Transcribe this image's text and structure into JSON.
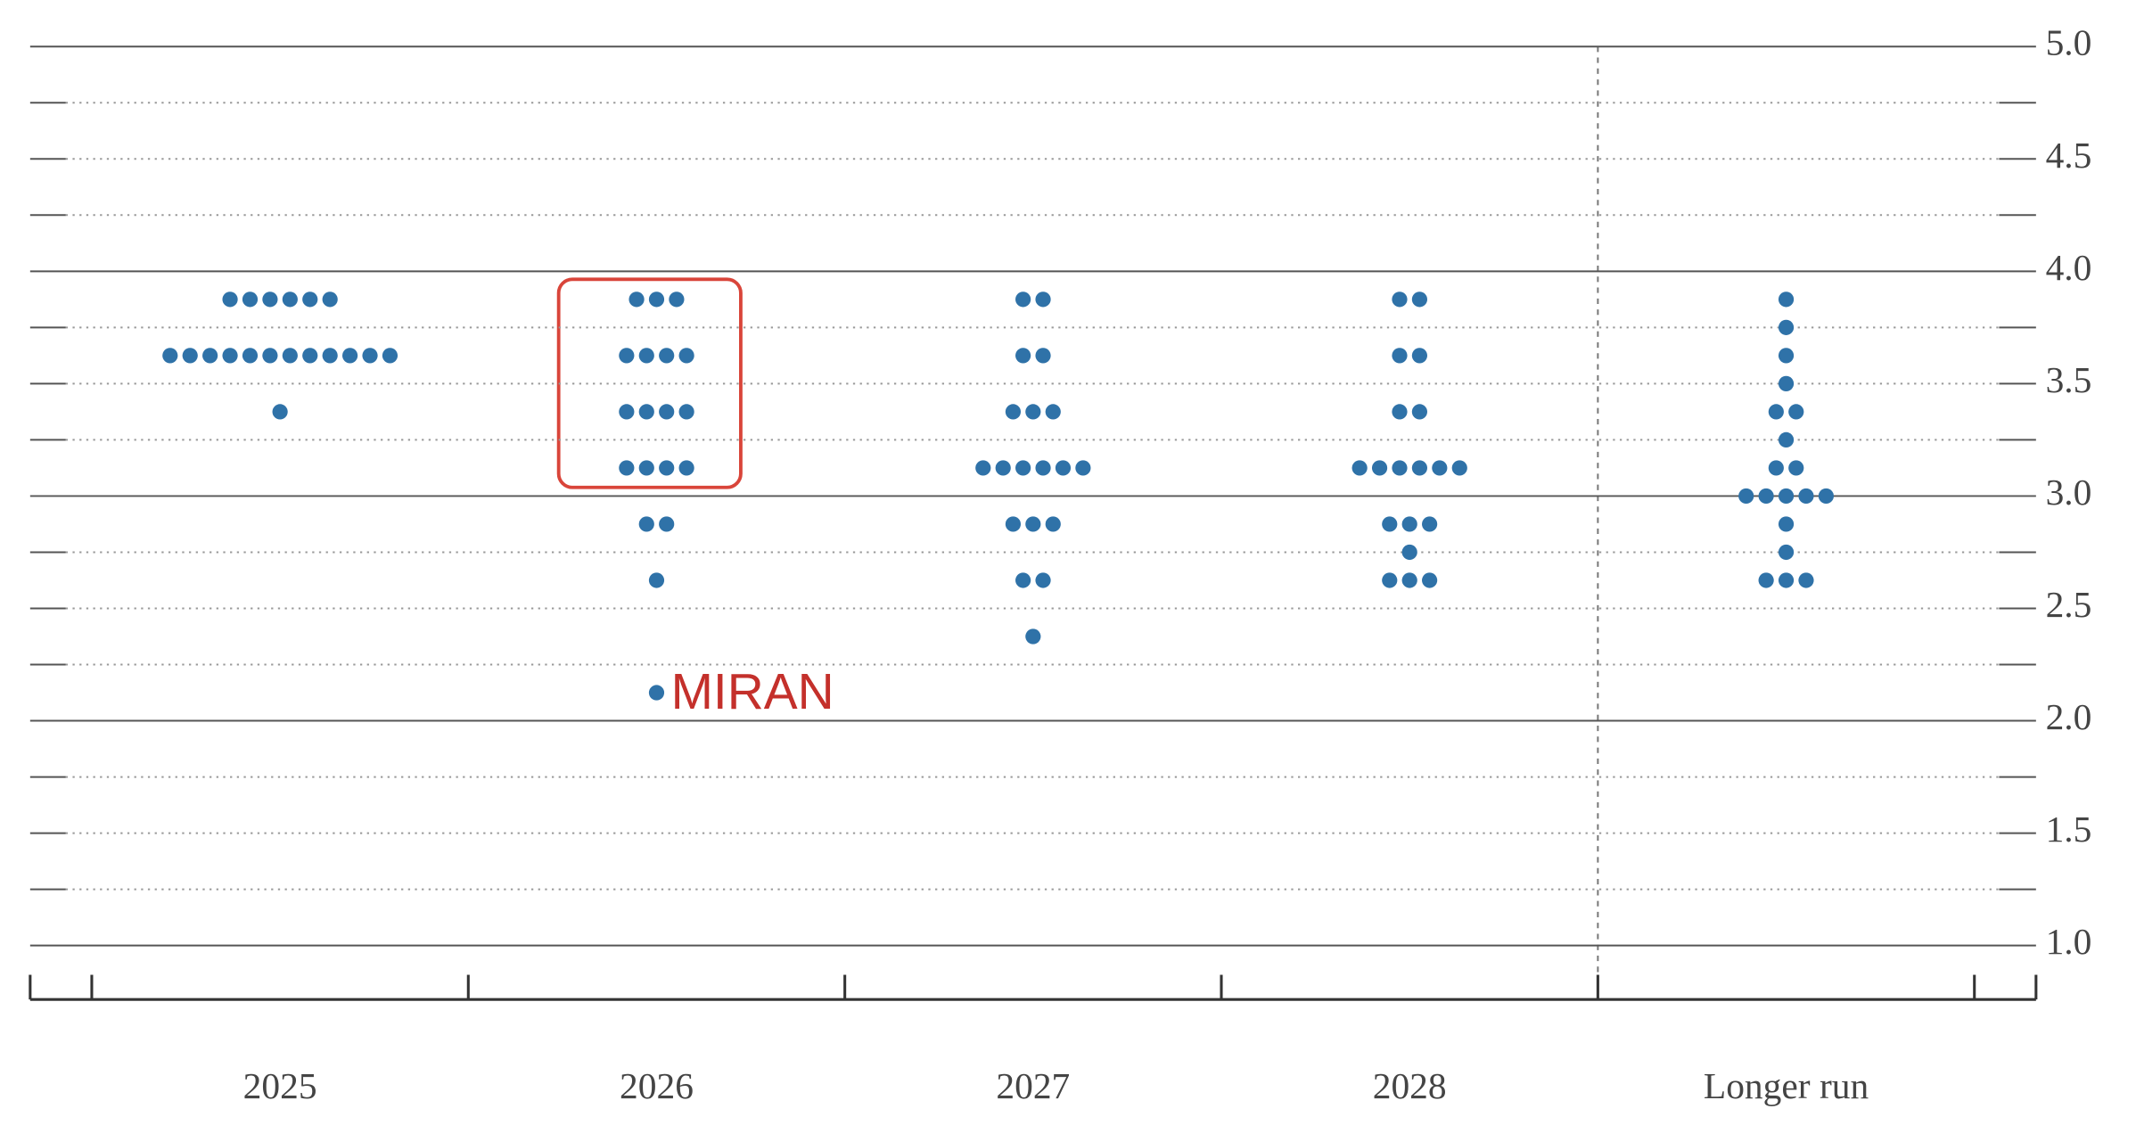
{
  "chart_data": {
    "type": "dot",
    "categories": [
      "2025",
      "2026",
      "2027",
      "2028",
      "Longer run"
    ],
    "color": "#2f72a8",
    "dots": [
      [
        {
          "value": 3.875,
          "count": 6
        },
        {
          "value": 3.625,
          "count": 12
        },
        {
          "value": 3.375,
          "count": 1
        }
      ],
      [
        {
          "value": 3.875,
          "count": 3
        },
        {
          "value": 3.625,
          "count": 4
        },
        {
          "value": 3.375,
          "count": 4
        },
        {
          "value": 3.125,
          "count": 4
        },
        {
          "value": 2.875,
          "count": 2
        },
        {
          "value": 2.625,
          "count": 1
        },
        {
          "value": 2.125,
          "count": 1
        }
      ],
      [
        {
          "value": 3.875,
          "count": 2
        },
        {
          "value": 3.625,
          "count": 2
        },
        {
          "value": 3.375,
          "count": 3
        },
        {
          "value": 3.125,
          "count": 6
        },
        {
          "value": 2.875,
          "count": 3
        },
        {
          "value": 2.625,
          "count": 2
        },
        {
          "value": 2.375,
          "count": 1
        }
      ],
      [
        {
          "value": 3.875,
          "count": 2
        },
        {
          "value": 3.625,
          "count": 2
        },
        {
          "value": 3.375,
          "count": 2
        },
        {
          "value": 3.125,
          "count": 6
        },
        {
          "value": 2.875,
          "count": 3
        },
        {
          "value": 2.75,
          "count": 1
        },
        {
          "value": 2.625,
          "count": 3
        }
      ],
      [
        {
          "value": 3.875,
          "count": 1
        },
        {
          "value": 3.75,
          "count": 1
        },
        {
          "value": 3.625,
          "count": 1
        },
        {
          "value": 3.5,
          "count": 1
        },
        {
          "value": 3.375,
          "count": 2
        },
        {
          "value": 3.25,
          "count": 1
        },
        {
          "value": 3.125,
          "count": 2
        },
        {
          "value": 3.0,
          "count": 5
        },
        {
          "value": 2.875,
          "count": 1
        },
        {
          "value": 2.75,
          "count": 1
        },
        {
          "value": 2.625,
          "count": 3
        }
      ]
    ],
    "annotation": "MIRAN",
    "ylim": [
      0.76,
      5.0
    ],
    "yticks": [
      {
        "value": 1.0,
        "label": "1.0"
      },
      {
        "value": 1.5,
        "label": "1.5"
      },
      {
        "value": 2.0,
        "label": "2.0"
      },
      {
        "value": 2.5,
        "label": "2.5"
      },
      {
        "value": 3.0,
        "label": "3.0"
      },
      {
        "value": 3.5,
        "label": "3.5"
      },
      {
        "value": 4.0,
        "label": "4.0"
      },
      {
        "value": 4.5,
        "label": "4.5"
      },
      {
        "value": 5.0,
        "label": "5.0"
      }
    ],
    "minor_yticks": [
      1.25,
      1.75,
      2.25,
      2.75,
      3.25,
      3.75,
      4.25,
      4.75
    ],
    "grid": true
  }
}
